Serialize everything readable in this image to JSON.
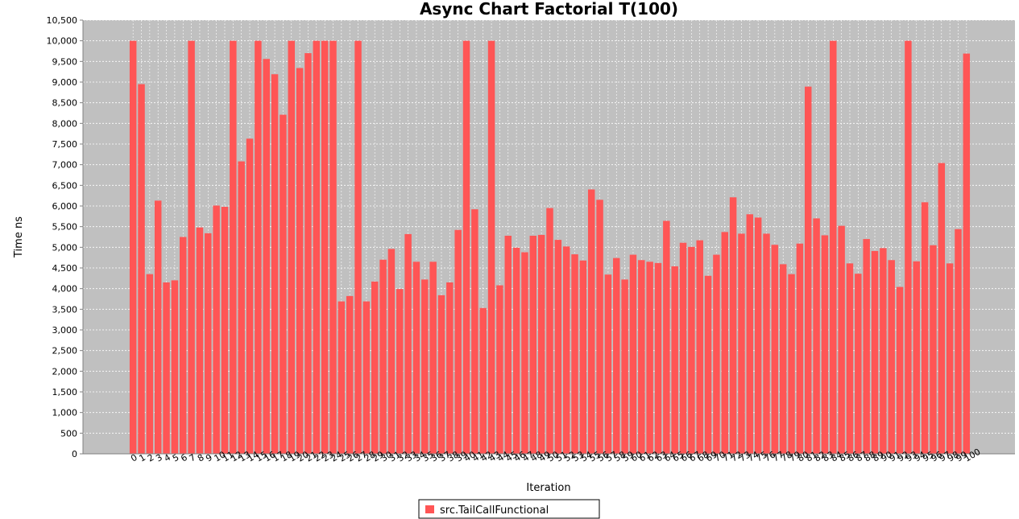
{
  "chart_data": {
    "type": "bar",
    "title": "Async Chart Factorial T(100)",
    "xlabel": "Iteration",
    "ylabel": "Time ns",
    "ylim": [
      0,
      10500
    ],
    "yticks": [
      0,
      500,
      1000,
      1500,
      2000,
      2500,
      3000,
      3500,
      4000,
      4500,
      5000,
      5500,
      6000,
      6500,
      7000,
      7500,
      8000,
      8500,
      9000,
      9500,
      10000,
      10500
    ],
    "ytick_labels": [
      "0",
      "500",
      "1,000",
      "1,500",
      "2,000",
      "2,500",
      "3,000",
      "3,500",
      "4,000",
      "4,500",
      "5,000",
      "5,500",
      "6,000",
      "6,500",
      "7,000",
      "7,500",
      "8,000",
      "8,500",
      "9,000",
      "9,500",
      "10,000",
      "10,500"
    ],
    "grid": true,
    "legend_position": "bottom-center",
    "series": [
      {
        "name": "src.TailCallFunctional",
        "color": "#ff5555",
        "values": [
          10000,
          8950,
          4350,
          6130,
          4150,
          4200,
          5250,
          10000,
          5480,
          5340,
          6010,
          5980,
          10000,
          7080,
          7630,
          10000,
          9560,
          9190,
          8210,
          10000,
          9340,
          9700,
          10000,
          10000,
          10000,
          3690,
          3820,
          10000,
          3690,
          4170,
          4700,
          4960,
          3990,
          5320,
          4650,
          4220,
          4650,
          3840,
          4150,
          5420,
          10000,
          5920,
          3530,
          10000,
          4080,
          5280,
          4990,
          4880,
          5280,
          5300,
          5950,
          5180,
          5020,
          4830,
          4680,
          6400,
          6150,
          4340,
          4740,
          4220,
          4820,
          4690,
          4650,
          4620,
          5640,
          4540,
          5110,
          5010,
          5170,
          4310,
          4820,
          5370,
          6210,
          5330,
          5800,
          5720,
          5330,
          5060,
          4590,
          4350,
          5090,
          8890,
          5700,
          5290,
          10000,
          5520,
          4610,
          4360,
          5200,
          4910,
          4980,
          4690,
          4040,
          10000,
          4660,
          6090,
          5050,
          7040,
          4610,
          5440,
          9690
        ]
      }
    ]
  }
}
